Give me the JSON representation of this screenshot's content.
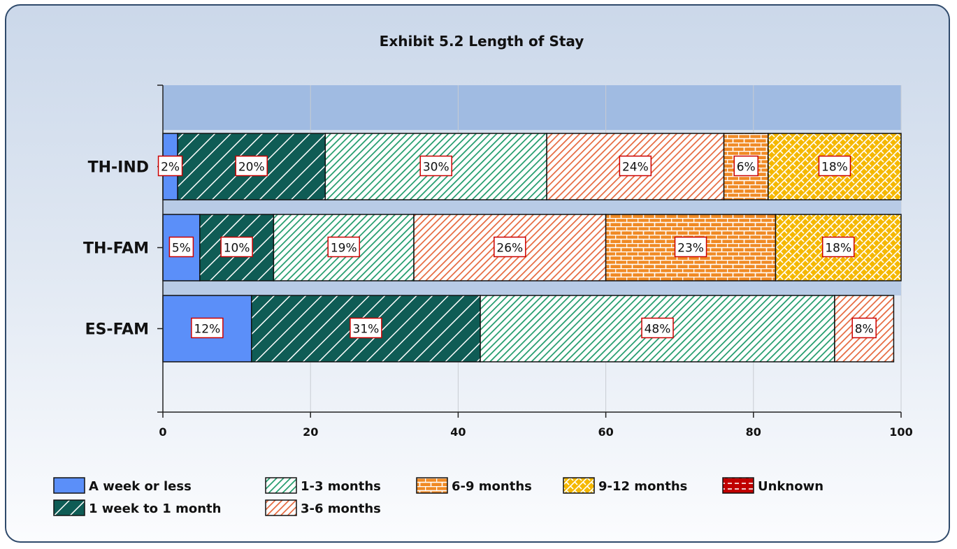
{
  "chart_data": {
    "type": "bar",
    "orientation": "horizontal",
    "stacked": true,
    "title": "Exhibit 5.2 Length of Stay",
    "xlabel": "",
    "ylabel": "",
    "xlim": [
      0,
      100
    ],
    "x_ticks": [
      "0",
      "20",
      "40",
      "60",
      "80",
      "100"
    ],
    "grid": true,
    "legend_position": "bottom",
    "categories": [
      "TH-IND",
      "TH-FAM",
      "ES-FAM"
    ],
    "series": [
      {
        "name": "A week or less",
        "values": [
          2,
          5,
          12
        ],
        "labels": [
          "2%",
          "5%",
          "12%"
        ],
        "color": "#5b8ff9",
        "pattern": "solid"
      },
      {
        "name": "1 week to 1 month",
        "values": [
          20,
          10,
          31
        ],
        "labels": [
          "20%",
          "10%",
          "31%"
        ],
        "color": "#0f5c55",
        "pattern": "wide-diagonal"
      },
      {
        "name": "1-3 months",
        "values": [
          30,
          19,
          48
        ],
        "labels": [
          "30%",
          "19%",
          "48%"
        ],
        "color": "#1e9a6a",
        "pattern": "dense-diagonal"
      },
      {
        "name": "3-6 months",
        "values": [
          24,
          26,
          8
        ],
        "labels": [
          "24%",
          "26%",
          "8%"
        ],
        "color": "#e5673c",
        "pattern": "dense-diagonal"
      },
      {
        "name": "6-9 months",
        "values": [
          6,
          23,
          0
        ],
        "labels": [
          "6%",
          "23%",
          ""
        ],
        "color": "#f08a24",
        "pattern": "brick"
      },
      {
        "name": "9-12 months",
        "values": [
          18,
          18,
          0
        ],
        "labels": [
          "18%",
          "18%",
          ""
        ],
        "color": "#f5b800",
        "pattern": "weave"
      },
      {
        "name": "Unknown",
        "values": [
          0,
          0,
          0
        ],
        "labels": [
          "",
          "",
          ""
        ],
        "color": "#c00000",
        "pattern": "dashed"
      }
    ]
  }
}
